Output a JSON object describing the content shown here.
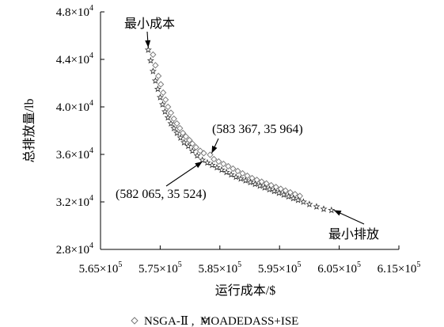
{
  "chart_data": {
    "type": "scatter",
    "xlabel": "运行成本/$",
    "ylabel": "总排放量/lb",
    "xlim": [
      565000,
      615000
    ],
    "ylim": [
      28000,
      48000
    ],
    "xticks": [
      565000,
      575000,
      585000,
      595000,
      605000,
      615000
    ],
    "yticks": [
      28000,
      32000,
      36000,
      40000,
      44000,
      48000
    ],
    "xtick_labels": [
      {
        "mant": "5.65×10",
        "exp": "5"
      },
      {
        "mant": "5.75×10",
        "exp": "5"
      },
      {
        "mant": "5.85×10",
        "exp": "5"
      },
      {
        "mant": "5.95×10",
        "exp": "5"
      },
      {
        "mant": "6.05×10",
        "exp": "5"
      },
      {
        "mant": "6.15×10",
        "exp": "5"
      }
    ],
    "ytick_labels": [
      {
        "mant": "2.8×10",
        "exp": "4"
      },
      {
        "mant": "3.2×10",
        "exp": "4"
      },
      {
        "mant": "3.6×10",
        "exp": "4"
      },
      {
        "mant": "4.0×10",
        "exp": "4"
      },
      {
        "mant": "4.4×10",
        "exp": "4"
      },
      {
        "mant": "4.8×10",
        "exp": "4"
      }
    ],
    "grid": false,
    "legend_text": "NSGA-Ⅱ ,  MOADEDASS+ISE",
    "series": [
      {
        "name": "NSGA-Ⅱ",
        "marker": "diamond",
        "color": "#777777",
        "points": [
          [
            573800,
            44400
          ],
          [
            574200,
            43500
          ],
          [
            574700,
            42600
          ],
          [
            575100,
            41900
          ],
          [
            575500,
            41200
          ],
          [
            575900,
            40600
          ],
          [
            576300,
            40000
          ],
          [
            576800,
            39500
          ],
          [
            577300,
            39000
          ],
          [
            577800,
            38600
          ],
          [
            578300,
            38200
          ],
          [
            578800,
            37800
          ],
          [
            579300,
            37500
          ],
          [
            579900,
            37200
          ],
          [
            580400,
            36900
          ],
          [
            581000,
            36600
          ],
          [
            581700,
            36300
          ],
          [
            582300,
            36100
          ],
          [
            583367,
            35964
          ],
          [
            584000,
            35600
          ],
          [
            584800,
            35400
          ],
          [
            585600,
            35200
          ],
          [
            586400,
            35000
          ],
          [
            587200,
            34800
          ],
          [
            588000,
            34600
          ],
          [
            588800,
            34400
          ],
          [
            589600,
            34200
          ],
          [
            590400,
            34000
          ],
          [
            591200,
            33850
          ],
          [
            592000,
            33700
          ],
          [
            592800,
            33550
          ],
          [
            593600,
            33400
          ],
          [
            594400,
            33250
          ],
          [
            595200,
            33100
          ],
          [
            596000,
            32950
          ],
          [
            596800,
            32800
          ],
          [
            597600,
            32650
          ],
          [
            598400,
            32500
          ]
        ]
      },
      {
        "name": "MOADEDASS+ISE",
        "marker": "star",
        "color": "#333333",
        "points": [
          [
            573000,
            44800
          ],
          [
            573400,
            43900
          ],
          [
            573800,
            43000
          ],
          [
            574200,
            42200
          ],
          [
            574600,
            41500
          ],
          [
            575000,
            40800
          ],
          [
            575400,
            40200
          ],
          [
            575800,
            39600
          ],
          [
            576300,
            39100
          ],
          [
            576800,
            38600
          ],
          [
            577300,
            38200
          ],
          [
            577800,
            37800
          ],
          [
            578400,
            37400
          ],
          [
            579000,
            37000
          ],
          [
            579700,
            36700
          ],
          [
            580400,
            36300
          ],
          [
            581200,
            35900
          ],
          [
            582065,
            35524
          ],
          [
            582900,
            35300
          ],
          [
            583700,
            35100
          ],
          [
            584500,
            34900
          ],
          [
            585300,
            34700
          ],
          [
            586100,
            34500
          ],
          [
            586900,
            34300
          ],
          [
            587700,
            34100
          ],
          [
            588500,
            33950
          ],
          [
            589300,
            33800
          ],
          [
            590100,
            33650
          ],
          [
            590900,
            33500
          ],
          [
            591700,
            33350
          ],
          [
            592500,
            33200
          ],
          [
            593300,
            33050
          ],
          [
            594100,
            32900
          ],
          [
            594900,
            32750
          ],
          [
            595700,
            32600
          ],
          [
            596500,
            32450
          ],
          [
            597300,
            32300
          ],
          [
            598100,
            32150
          ],
          [
            599000,
            32000
          ],
          [
            600000,
            31800
          ],
          [
            601200,
            31600
          ],
          [
            602400,
            31400
          ],
          [
            603700,
            31300
          ]
        ]
      }
    ],
    "annotations": [
      {
        "text": "最小成本",
        "x": 573000,
        "y": 44800
      },
      {
        "text": "(583 367, 35 964)",
        "x": 583367,
        "y": 35964
      },
      {
        "text": "(582 065, 35 524)",
        "x": 582065,
        "y": 35524
      },
      {
        "text": "最小排放",
        "x": 603700,
        "y": 31300
      }
    ]
  }
}
